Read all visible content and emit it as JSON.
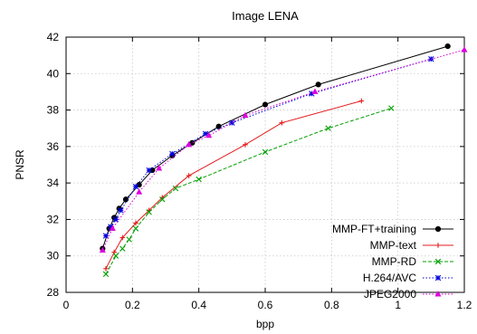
{
  "chart_data": {
    "type": "line",
    "title": "Image LENA",
    "xlabel": "bpp",
    "ylabel": "PNSR",
    "xlim": [
      0,
      1.2
    ],
    "ylim": [
      28,
      42
    ],
    "x_ticks": [
      0,
      0.2,
      0.4,
      0.6,
      0.8,
      1,
      1.2
    ],
    "x_tick_labels": [
      "0",
      "0.2",
      "0.4",
      "0.6",
      "0.8",
      "1",
      "1.2"
    ],
    "y_ticks": [
      28,
      30,
      32,
      34,
      36,
      38,
      40,
      42
    ],
    "y_tick_labels": [
      "28",
      "30",
      "32",
      "34",
      "36",
      "38",
      "40",
      "42"
    ],
    "grid": true,
    "legend_position": "bottom-right",
    "series": [
      {
        "name": "MMP-FT+training",
        "color": "#000000",
        "marker": "circle",
        "dash": "",
        "x": [
          0.11,
          0.13,
          0.145,
          0.16,
          0.18,
          0.22,
          0.26,
          0.32,
          0.38,
          0.46,
          0.6,
          0.76,
          1.15
        ],
        "y": [
          30.4,
          31.5,
          32.1,
          32.6,
          33.1,
          33.9,
          34.7,
          35.5,
          36.2,
          37.1,
          38.3,
          39.4,
          41.5
        ]
      },
      {
        "name": "MMP-text",
        "color": "#e41a1c",
        "marker": "plus",
        "dash": "",
        "x": [
          0.12,
          0.145,
          0.17,
          0.21,
          0.25,
          0.29,
          0.37,
          0.54,
          0.65,
          0.89
        ],
        "y": [
          29.3,
          30.2,
          31.0,
          31.8,
          32.5,
          33.2,
          34.4,
          36.1,
          37.3,
          38.5
        ]
      },
      {
        "name": "MMP-RD",
        "color": "#00a000",
        "marker": "x",
        "dash": "4 2",
        "x": [
          0.12,
          0.15,
          0.17,
          0.19,
          0.21,
          0.25,
          0.29,
          0.33,
          0.4,
          0.6,
          0.79,
          0.98
        ],
        "y": [
          29.0,
          30.0,
          30.4,
          30.9,
          31.5,
          32.4,
          33.1,
          33.7,
          34.2,
          35.7,
          37.0,
          38.1
        ]
      },
      {
        "name": "H.264/AVC",
        "color": "#0000dd",
        "marker": "star",
        "dash": "1.5 2",
        "x": [
          0.12,
          0.135,
          0.15,
          0.165,
          0.21,
          0.25,
          0.32,
          0.42,
          0.5,
          0.74,
          1.1
        ],
        "y": [
          31.1,
          31.6,
          32.0,
          32.5,
          33.8,
          34.7,
          35.6,
          36.7,
          37.3,
          38.9,
          40.8
        ]
      },
      {
        "name": "JPEG2000",
        "color": "#dd00dd",
        "marker": "triangle",
        "dash": "1.5 2",
        "x": [
          0.11,
          0.14,
          0.22,
          0.28,
          0.37,
          0.43,
          0.54,
          0.75,
          1.2
        ],
        "y": [
          30.3,
          31.5,
          33.5,
          34.8,
          36.1,
          36.6,
          37.7,
          39.0,
          41.3
        ]
      }
    ]
  }
}
